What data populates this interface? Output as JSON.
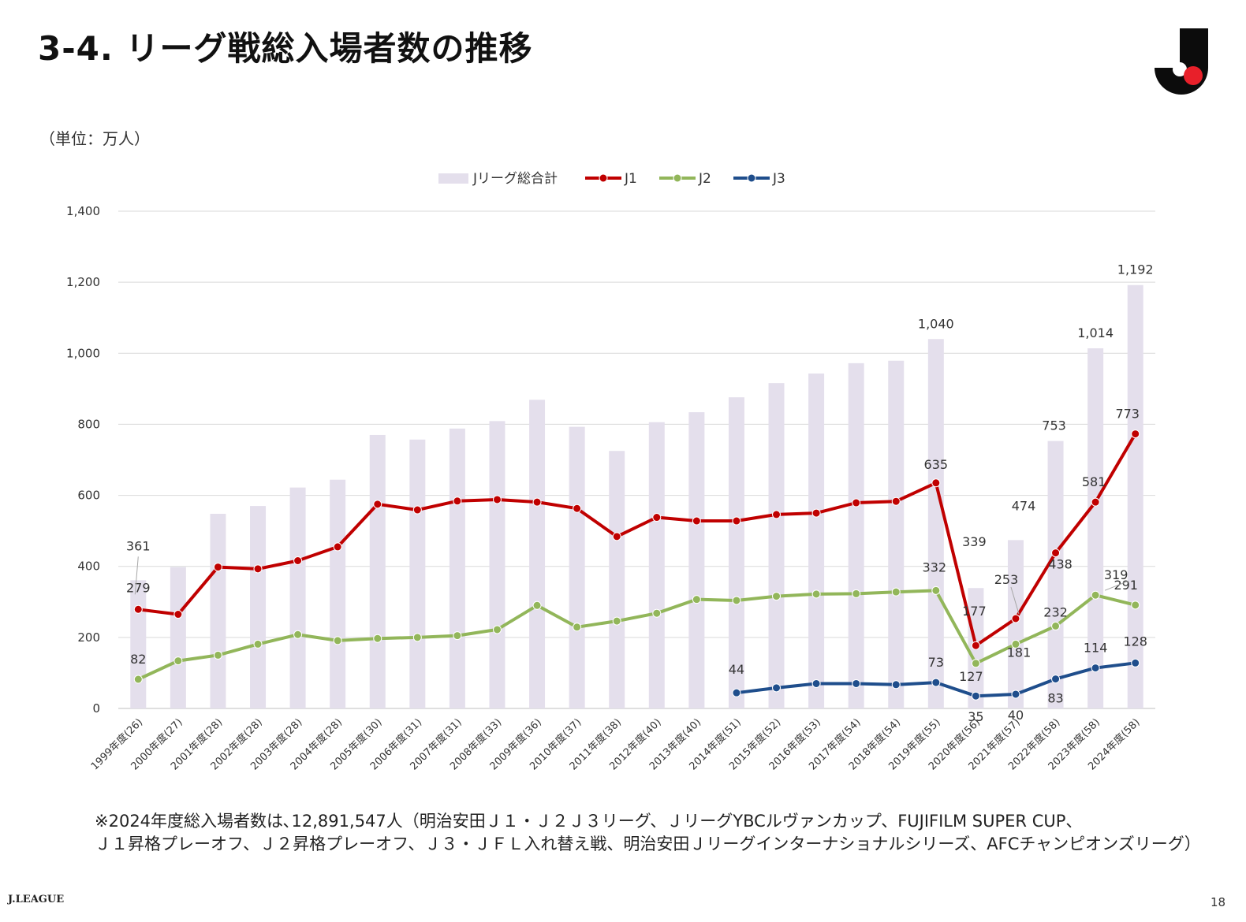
{
  "page": {
    "title": "3-4. リーグ戦総入場者数の推移",
    "unit_label": "（単位：万人）",
    "note_line1": "※2024年度総入場者数は､12,891,547人（明治安田Ｊ１・Ｊ２Ｊ３リーグ、ＪリーグYBCルヴァンカップ、FUJIFILM SUPER CUP、",
    "note_line2": "Ｊ１昇格プレーオフ、Ｊ２昇格プレーオフ、Ｊ３・ＪＦＬ入れ替え戦、明治安田Ｊリーグインターナショナルシリーズ、AFCチャンピオンズリーグ）",
    "footer_brand": "J.LEAGUE",
    "page_number": "18"
  },
  "chart_data": {
    "type": "bar",
    "title": "",
    "xlabel": "",
    "ylabel": "",
    "ylim": [
      0,
      1400
    ],
    "yticks": [
      0,
      200,
      400,
      600,
      800,
      1000,
      1200,
      1400
    ],
    "ytick_labels": [
      "0",
      "200",
      "400",
      "600",
      "800",
      "1,000",
      "1,200",
      "1,400"
    ],
    "grid": true,
    "legend_position": "top-center",
    "categories": [
      "1999年度(26)",
      "2000年度(27)",
      "2001年度(28)",
      "2002年度(28)",
      "2003年度(28)",
      "2004年度(28)",
      "2005年度(30)",
      "2006年度(31)",
      "2007年度(31)",
      "2008年度(33)",
      "2009年度(36)",
      "2010年度(37)",
      "2011年度(38)",
      "2012年度(40)",
      "2013年度(40)",
      "2014年度(51)",
      "2015年度(52)",
      "2016年度(53)",
      "2017年度(54)",
      "2018年度(54)",
      "2019年度(55)",
      "2020年度(56)",
      "2021年度(57)",
      "2022年度(58)",
      "2023年度(58)",
      "2024年度(58)"
    ],
    "series": [
      {
        "name": "Jリーグ総合計",
        "kind": "bar",
        "color": "#e4dfec",
        "values": [
          361,
          398,
          548,
          570,
          622,
          644,
          770,
          757,
          788,
          809,
          869,
          793,
          725,
          806,
          834,
          876,
          916,
          943,
          972,
          979,
          1040,
          339,
          474,
          753,
          1014,
          1192
        ],
        "labels": [
          "361",
          "",
          "",
          "",
          "",
          "",
          "",
          "",
          "",
          "",
          "",
          "",
          "",
          "",
          "",
          "",
          "",
          "",
          "",
          "",
          "1,040",
          "339",
          "474",
          "753",
          "1,014",
          "1,192"
        ]
      },
      {
        "name": "J1",
        "kind": "line",
        "color": "#c00000",
        "values": [
          279,
          265,
          398,
          393,
          416,
          455,
          575,
          559,
          584,
          588,
          581,
          563,
          484,
          538,
          528,
          528,
          546,
          550,
          579,
          583,
          635,
          177,
          253,
          438,
          581,
          773
        ],
        "labels": [
          "279",
          "",
          "",
          "",
          "",
          "",
          "",
          "",
          "",
          "",
          "",
          "",
          "",
          "",
          "",
          "",
          "",
          "",
          "",
          "",
          "635",
          "177",
          "253",
          "438",
          "581",
          "773"
        ]
      },
      {
        "name": "J2",
        "kind": "line",
        "color": "#92b65a",
        "values": [
          82,
          134,
          150,
          181,
          208,
          191,
          197,
          200,
          205,
          222,
          290,
          229,
          246,
          268,
          307,
          304,
          316,
          322,
          323,
          328,
          332,
          127,
          181,
          232,
          319,
          291
        ],
        "labels": [
          "82",
          "",
          "",
          "",
          "",
          "",
          "",
          "",
          "",
          "",
          "",
          "",
          "",
          "",
          "",
          "",
          "",
          "",
          "",
          "",
          "332",
          "127",
          "181",
          "232",
          "319",
          "291"
        ]
      },
      {
        "name": "J3",
        "kind": "line",
        "color": "#1f4e8c",
        "values": [
          null,
          null,
          null,
          null,
          null,
          null,
          null,
          null,
          null,
          null,
          null,
          null,
          null,
          null,
          null,
          44,
          58,
          70,
          70,
          67,
          73,
          35,
          40,
          83,
          114,
          128
        ],
        "labels": [
          "",
          "",
          "",
          "",
          "",
          "",
          "",
          "",
          "",
          "",
          "",
          "",
          "",
          "",
          "",
          "44",
          "",
          "",
          "",
          "",
          "73",
          "35",
          "40",
          "83",
          "114",
          "128"
        ]
      }
    ]
  }
}
